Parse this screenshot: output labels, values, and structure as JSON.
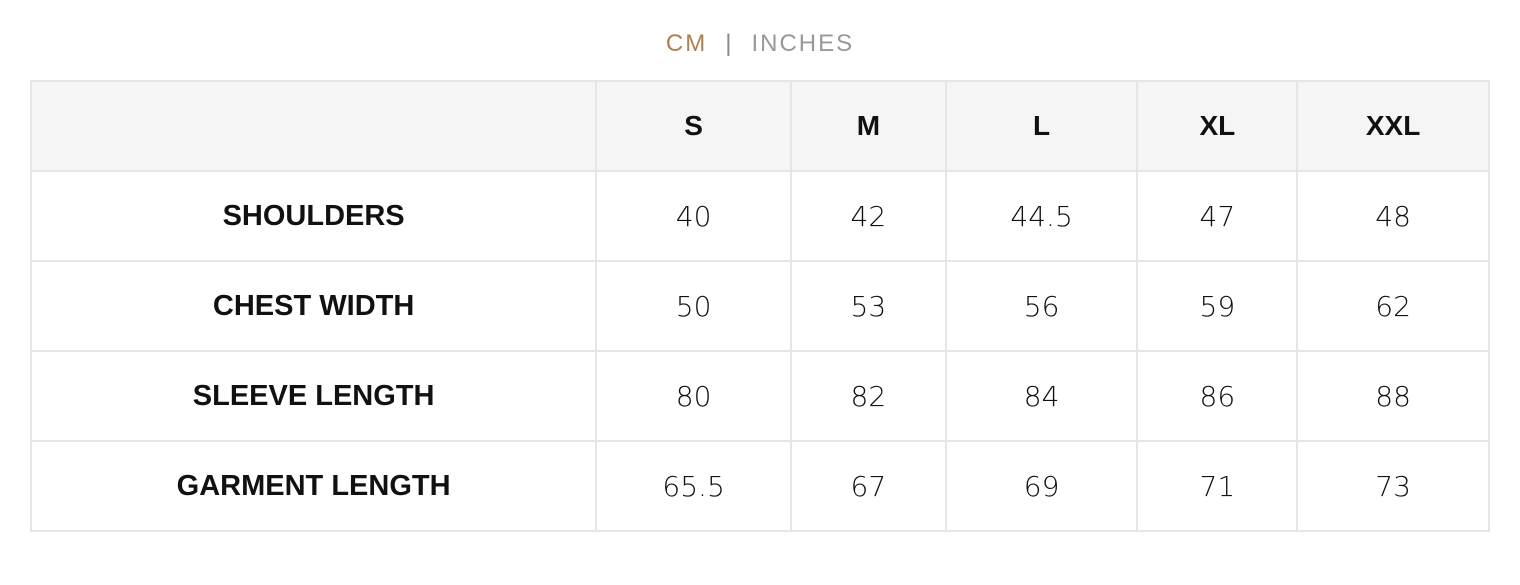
{
  "units": {
    "active": "CM",
    "separator": "|",
    "other": "INCHES",
    "active_color": "#b07f4e"
  },
  "table": {
    "headers": [
      "",
      "S",
      "M",
      "L",
      "XL",
      "XXL"
    ],
    "rows": [
      {
        "label": "SHOULDERS",
        "values": [
          "40",
          "42",
          "44.5",
          "47",
          "48"
        ]
      },
      {
        "label": "CHEST WIDTH",
        "values": [
          "50",
          "53",
          "56",
          "59",
          "62"
        ]
      },
      {
        "label": "SLEEVE LENGTH",
        "values": [
          "80",
          "82",
          "84",
          "86",
          "88"
        ]
      },
      {
        "label": "GARMENT LENGTH",
        "values": [
          "65.5",
          "67",
          "69",
          "71",
          "73"
        ]
      }
    ]
  }
}
